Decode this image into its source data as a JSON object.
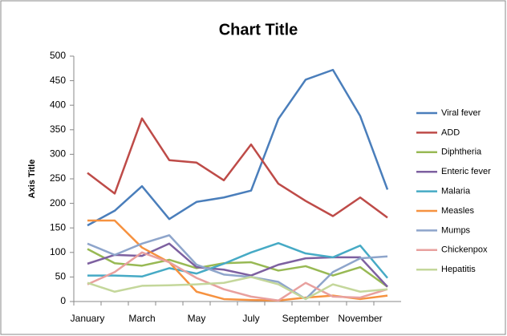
{
  "chart_data": {
    "type": "line",
    "title": "Chart Title",
    "y_label": "Axis Title",
    "categories": [
      "January",
      null,
      "March",
      null,
      "May",
      null,
      "July",
      null,
      "September",
      null,
      "November",
      null
    ],
    "ylim": [
      0,
      500
    ],
    "yticks": [
      0,
      50,
      100,
      150,
      200,
      250,
      300,
      350,
      400,
      450,
      500
    ],
    "grid": false,
    "legend": "right",
    "series": [
      {
        "name": "Viral fever",
        "color": "#4a7ebb",
        "values": [
          155,
          185,
          235,
          168,
          203,
          212,
          226,
          372,
          452,
          472,
          378,
          228
        ]
      },
      {
        "name": "ADD",
        "color": "#be4b48",
        "values": [
          262,
          220,
          373,
          288,
          283,
          247,
          320,
          240,
          205,
          174,
          212,
          171
        ]
      },
      {
        "name": "Diphtheria",
        "color": "#98b954",
        "values": [
          107,
          78,
          73,
          85,
          68,
          78,
          80,
          63,
          72,
          53,
          70,
          30
        ]
      },
      {
        "name": "Enteric fever",
        "color": "#7d60a0",
        "values": [
          77,
          95,
          93,
          118,
          70,
          65,
          53,
          75,
          88,
          90,
          90,
          30
        ]
      },
      {
        "name": "Malaria",
        "color": "#46aac5",
        "values": [
          53,
          53,
          51,
          68,
          57,
          77,
          100,
          119,
          98,
          90,
          114,
          48
        ]
      },
      {
        "name": "Measles",
        "color": "#f69240",
        "values": [
          165,
          165,
          110,
          80,
          20,
          5,
          3,
          2,
          8,
          12,
          5,
          12
        ]
      },
      {
        "name": "Mumps",
        "color": "#8ea5cb",
        "values": [
          118,
          95,
          118,
          135,
          75,
          55,
          50,
          40,
          5,
          60,
          88,
          92
        ]
      },
      {
        "name": "Chickenpox",
        "color": "#e8a09e",
        "values": [
          35,
          60,
          100,
          80,
          48,
          25,
          10,
          2,
          38,
          10,
          8,
          25
        ]
      },
      {
        "name": "Hepatitis",
        "color": "#c4d79b",
        "values": [
          38,
          20,
          32,
          33,
          35,
          38,
          50,
          35,
          5,
          35,
          20,
          25
        ]
      }
    ]
  }
}
